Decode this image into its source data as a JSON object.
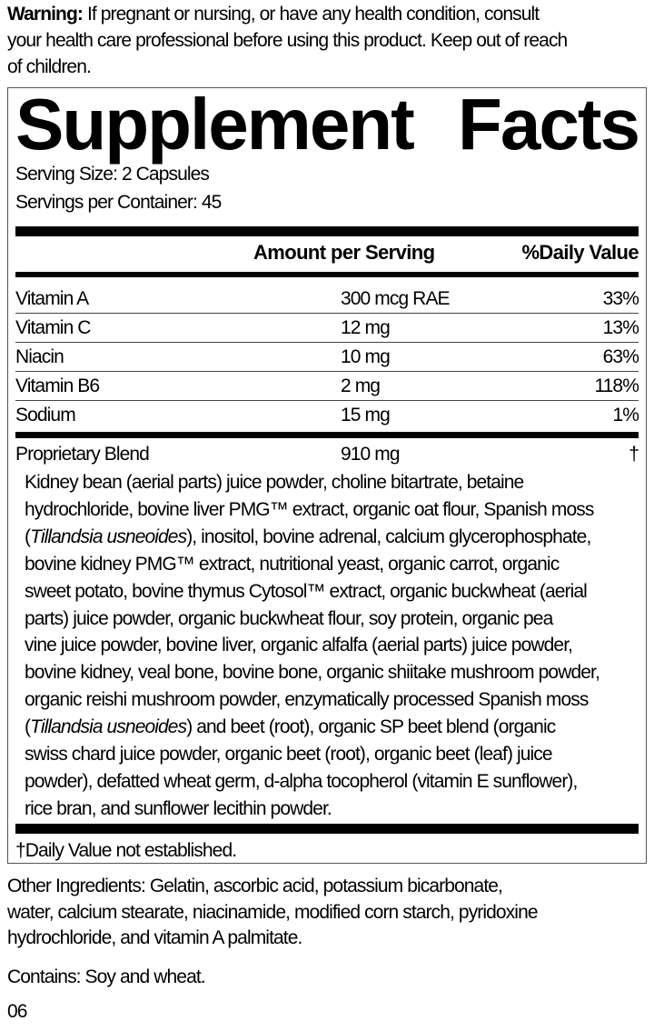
{
  "warning": {
    "label": "Warning:",
    "lines": [
      " If pregnant or nursing, or have any health condition, consult",
      "your health care professional before using this product. Keep out of reach",
      "of children."
    ]
  },
  "facts": {
    "title_words": [
      "Supplement",
      "Facts"
    ],
    "serving_size": "Serving Size: 2 Capsules",
    "servings_per_container": "Servings per Container: 45",
    "header_amount": "Amount per Serving",
    "header_dv": "%Daily Value",
    "nutrients": [
      {
        "name": "Vitamin A",
        "amount": "300 mcg RAE",
        "dv": "33%"
      },
      {
        "name": "Vitamin C",
        "amount": "12 mg",
        "dv": "13%"
      },
      {
        "name": "Niacin",
        "amount": "10 mg",
        "dv": "63%"
      },
      {
        "name": "Vitamin B6",
        "amount": "2 mg",
        "dv": "118%"
      },
      {
        "name": "Sodium",
        "amount": "15 mg",
        "dv": "1%"
      }
    ],
    "blend": {
      "name": "Proprietary Blend",
      "amount": "910 mg",
      "dv": "†"
    },
    "blend_lines": [
      [
        {
          "t": "Kidney bean (aerial parts) juice powder, choline bitartrate, betaine"
        }
      ],
      [
        {
          "t": "hydrochloride, bovine liver PMG™ extract, organic oat flour, Spanish moss"
        }
      ],
      [
        {
          "t": "("
        },
        {
          "t": "Tillandsia usneoides",
          "i": true
        },
        {
          "t": "), inositol, bovine adrenal, calcium glycerophosphate,"
        }
      ],
      [
        {
          "t": "bovine kidney PMG™ extract, nutritional yeast, organic carrot, organic"
        }
      ],
      [
        {
          "t": "sweet potato, bovine thymus Cytosol™ extract, organic buckwheat (aerial"
        }
      ],
      [
        {
          "t": "parts) juice powder, organic buckwheat flour, soy protein, organic pea"
        }
      ],
      [
        {
          "t": "vine juice powder, bovine liver, organic alfalfa (aerial parts) juice powder,"
        }
      ],
      [
        {
          "t": "bovine kidney, veal bone, bovine bone, organic shiitake mushroom powder,"
        }
      ],
      [
        {
          "t": "organic reishi mushroom powder, enzymatically processed Spanish moss"
        }
      ],
      [
        {
          "t": "("
        },
        {
          "t": "Tillandsia usneoides",
          "i": true
        },
        {
          "t": ") and beet (root), organic SP beet blend (organic"
        }
      ],
      [
        {
          "t": "swiss chard juice powder, organic beet (root), organic beet (leaf) juice"
        }
      ],
      [
        {
          "t": "powder), defatted wheat germ, d-alpha tocopherol (vitamin E sunflower),"
        }
      ],
      [
        {
          "t": "rice bran, and sunflower lecithin powder."
        }
      ]
    ],
    "footnote": "†Daily Value not established."
  },
  "other_ingredients": [
    "Other Ingredients: Gelatin, ascorbic acid, potassium bicarbonate,",
    "water, calcium stearate, niacinamide, modified corn starch, pyridoxine",
    "hydrochloride, and vitamin A palmitate."
  ],
  "contains": "Contains: Soy and wheat.",
  "code": "06"
}
